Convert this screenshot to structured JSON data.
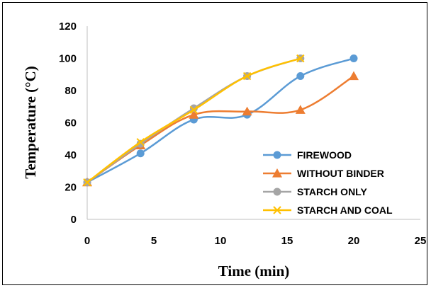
{
  "chart_data": {
    "type": "line",
    "title": "",
    "xlabel": "Time (min)",
    "ylabel": "Temperature (°C)",
    "xlim": [
      0,
      25
    ],
    "ylim": [
      0,
      120
    ],
    "xticks": [
      0,
      5,
      10,
      15,
      20,
      25
    ],
    "yticks": [
      0,
      20,
      40,
      60,
      80,
      100,
      120
    ],
    "grid": false,
    "legend_position": "bottom-right",
    "series": [
      {
        "name": "FIREWOOD",
        "color": "#5b9bd5",
        "marker": "circle",
        "x": [
          0,
          4,
          8,
          12,
          16,
          20
        ],
        "y": [
          23,
          41,
          62,
          65,
          89,
          100
        ]
      },
      {
        "name": "WITHOUT BINDER",
        "color": "#ed7d31",
        "marker": "triangle",
        "x": [
          0,
          4,
          8,
          12,
          16,
          20
        ],
        "y": [
          23,
          46,
          65,
          67,
          68,
          89
        ]
      },
      {
        "name": "STARCH ONLY",
        "color": "#a5a5a5",
        "marker": "circle",
        "x": [
          0,
          4,
          8,
          12,
          16
        ],
        "y": [
          23,
          47,
          69,
          89,
          100
        ]
      },
      {
        "name": "STARCH AND COAL",
        "color": "#ffc000",
        "marker": "x",
        "x": [
          0,
          4,
          8,
          12,
          16
        ],
        "y": [
          23,
          48,
          68,
          89,
          100
        ]
      }
    ]
  }
}
